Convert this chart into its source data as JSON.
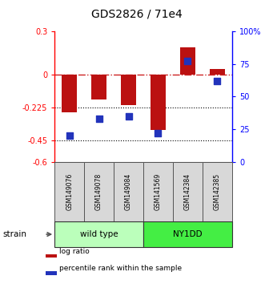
{
  "title": "GDS2826 / 71e4",
  "samples": [
    "GSM149076",
    "GSM149078",
    "GSM149084",
    "GSM141569",
    "GSM142384",
    "GSM142385"
  ],
  "log_ratio": [
    -0.26,
    -0.17,
    -0.21,
    -0.38,
    0.19,
    0.04
  ],
  "percentile_rank": [
    20,
    33,
    35,
    22,
    77,
    62
  ],
  "groups": [
    {
      "label": "wild type",
      "indices": [
        0,
        1,
        2
      ],
      "color": "#bbffbb"
    },
    {
      "label": "NY1DD",
      "indices": [
        3,
        4,
        5
      ],
      "color": "#44ee44"
    }
  ],
  "ylim_left": [
    -0.6,
    0.3
  ],
  "ylim_right": [
    0,
    100
  ],
  "yticks_left": [
    -0.6,
    -0.45,
    -0.225,
    0,
    0.3
  ],
  "ytick_labels_left": [
    "-0.6",
    "-0.45",
    "-0.225",
    "0",
    "0.3"
  ],
  "yticks_right": [
    0,
    25,
    50,
    75,
    100
  ],
  "ytick_labels_right": [
    "0",
    "25",
    "50",
    "75",
    "100%"
  ],
  "hlines": [
    -0.225,
    -0.45
  ],
  "bar_color": "#bb1111",
  "dot_color": "#2233bb",
  "bar_width": 0.5,
  "dot_size": 40,
  "legend_items": [
    {
      "label": "log ratio",
      "color": "#bb1111"
    },
    {
      "label": "percentile rank within the sample",
      "color": "#2233bb"
    }
  ],
  "strain_label": "strain",
  "figsize": [
    3.41,
    3.54
  ],
  "dpi": 100
}
